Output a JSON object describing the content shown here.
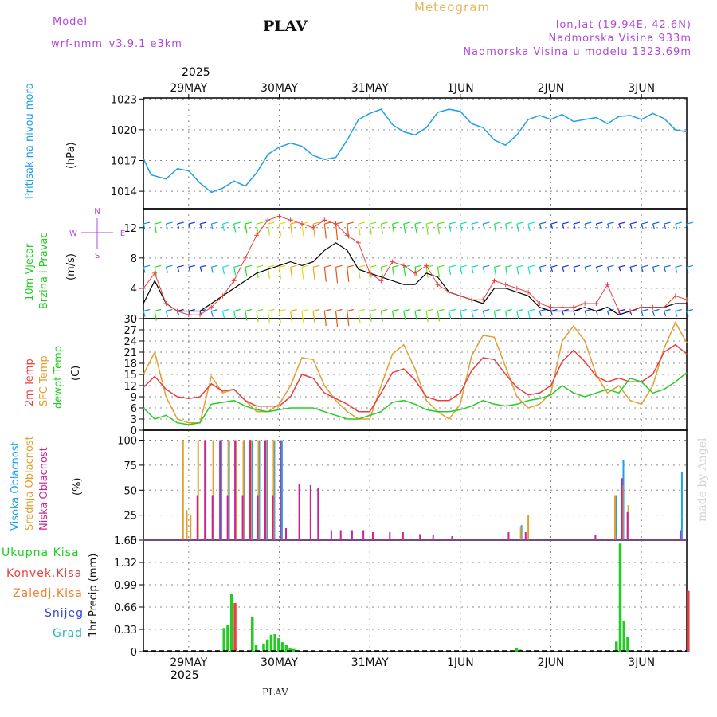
{
  "header": {
    "model_label": "Model",
    "model_name": "wrf-nmm_v3.9.1 e3km",
    "station": "PLAV",
    "title": "Meteogram",
    "coords": "lon,lat (19.94E, 42.6N)",
    "elevation": "Nadmorska Visina 933m",
    "model_elevation": "Nadmorska Visina u modelu 1323.69m"
  },
  "colors": {
    "pressure": "#1ea0e6",
    "temp2m": "#e84040",
    "tsfc": "#e0a030",
    "dewpt": "#22cc22",
    "purple": "#b04ad8",
    "gold": "#e8b860",
    "cloud_high": "#1ea0e6",
    "cloud_mid": "#e0a030",
    "cloud_low": "#cc2299",
    "total_precip": "#22cc22",
    "conv_precip": "#e84040",
    "frozen_precip": "#f08030",
    "snow": "#3344dd",
    "hail": "#22bbbb"
  },
  "chart_data": {
    "type": "line",
    "title": "Meteogram",
    "x_unit": "hours from 28 May 12:00 UTC",
    "x_range": [
      0,
      144
    ],
    "dates": [
      {
        "label": "29MAY",
        "year": "2025",
        "hour": 12
      },
      {
        "label": "30MAY",
        "hour": 36
      },
      {
        "label": "31MAY",
        "hour": 60
      },
      {
        "label": "1JUN",
        "hour": 84
      },
      {
        "label": "2JUN",
        "hour": 108
      },
      {
        "label": "3JUN",
        "hour": 132
      }
    ],
    "panels": {
      "pressure": {
        "ylabel_name": "Pritisak na nivou mora",
        "unit": "(hPa)",
        "ylim": [
          1012.3,
          1023.1
        ],
        "ticks": [
          "1014",
          "1017",
          "1020",
          "1023"
        ],
        "x": [
          0,
          2,
          6,
          9,
          12,
          15,
          18,
          21,
          24,
          27,
          30,
          33,
          36,
          39,
          42,
          45,
          48,
          51,
          54,
          57,
          60,
          63,
          66,
          69,
          72,
          75,
          78,
          81,
          84,
          87,
          90,
          93,
          96,
          99,
          102,
          105,
          108,
          111,
          114,
          117,
          120,
          123,
          126,
          129,
          132,
          135,
          138,
          141,
          144
        ],
        "values": [
          1017.2,
          1015.6,
          1015.2,
          1016.2,
          1016.0,
          1014.8,
          1013.9,
          1014.3,
          1015.0,
          1014.5,
          1015.8,
          1017.6,
          1018.3,
          1018.7,
          1018.4,
          1017.5,
          1017.1,
          1017.3,
          1019.0,
          1021.0,
          1021.6,
          1022.0,
          1020.5,
          1019.8,
          1019.5,
          1020.2,
          1021.7,
          1022.0,
          1021.8,
          1020.6,
          1020.2,
          1019.0,
          1018.5,
          1019.5,
          1021.0,
          1021.4,
          1021.0,
          1021.5,
          1020.8,
          1021.0,
          1021.2,
          1020.6,
          1021.3,
          1021.4,
          1021.0,
          1021.6,
          1021.1,
          1020.0,
          1019.8
        ]
      },
      "wind": {
        "ylabel_name": "10m Vjetar",
        "ylabel_name2": "Brzina i Pravac",
        "unit": "(m/s)",
        "compass": [
          "N",
          "W",
          "E",
          "S"
        ],
        "ylim": [
          0,
          14.5
        ],
        "ticks": [
          "0",
          "4",
          "8",
          "12"
        ],
        "x": [
          0,
          3,
          6,
          9,
          12,
          15,
          18,
          21,
          24,
          27,
          30,
          33,
          36,
          39,
          42,
          45,
          48,
          51,
          54,
          57,
          60,
          63,
          66,
          69,
          72,
          75,
          78,
          81,
          84,
          87,
          90,
          93,
          96,
          99,
          102,
          105,
          108,
          111,
          114,
          117,
          120,
          123,
          126,
          129,
          132,
          135,
          138,
          141,
          144
        ],
        "speed": [
          2,
          5,
          2,
          1,
          1,
          1,
          2,
          3,
          4,
          5,
          6,
          6.5,
          7,
          7.5,
          7,
          7.5,
          9,
          10,
          9,
          6.5,
          6,
          5.5,
          5,
          4.5,
          4.5,
          6,
          5.5,
          3.5,
          3,
          2.5,
          2,
          4,
          4,
          3.5,
          3,
          1.5,
          1,
          1,
          1,
          1.5,
          1,
          1.5,
          0.5,
          1,
          1.5,
          1.5,
          1.5,
          2,
          2
        ],
        "gust": [
          4,
          6,
          2,
          1,
          0.5,
          0.5,
          1.5,
          3,
          5,
          8,
          11,
          13,
          13.5,
          13,
          12.5,
          12,
          13,
          12.5,
          11,
          10,
          6,
          5,
          7.5,
          7,
          6,
          7,
          4.5,
          3.5,
          3,
          2.5,
          2.5,
          5,
          4.5,
          4,
          3.5,
          2,
          1.5,
          1.5,
          1.5,
          2,
          2,
          4.5,
          1,
          1,
          1.5,
          1.5,
          1.5,
          3,
          2.5
        ]
      },
      "temperature": {
        "ylabel_2m": "2m Temp",
        "ylabel_sfc": "SFC Temp",
        "ylabel_dew": "dewpt Temp",
        "unit": "(C)",
        "ylim": [
          0,
          30
        ],
        "ticks": [
          "0",
          "3",
          "6",
          "9",
          "12",
          "15",
          "18",
          "21",
          "24",
          "27",
          "30"
        ],
        "x": [
          0,
          3,
          6,
          9,
          12,
          15,
          18,
          21,
          24,
          27,
          30,
          33,
          36,
          39,
          42,
          45,
          48,
          51,
          54,
          57,
          60,
          63,
          66,
          69,
          72,
          75,
          78,
          81,
          84,
          87,
          90,
          93,
          96,
          99,
          102,
          105,
          108,
          111,
          114,
          117,
          120,
          123,
          126,
          129,
          132,
          135,
          138,
          141,
          144
        ],
        "t2m": [
          11.5,
          14.5,
          11,
          9,
          8.5,
          9,
          12.5,
          10.5,
          11,
          8,
          6.5,
          6.5,
          6.5,
          9,
          15,
          14,
          10,
          8.5,
          7,
          5,
          5,
          10,
          15.5,
          16.5,
          13.5,
          9,
          8,
          8,
          10,
          16,
          19.5,
          19,
          15,
          11.5,
          9.5,
          10,
          12,
          18.5,
          21.5,
          18.5,
          14.5,
          13,
          14,
          13,
          13,
          15,
          21,
          23,
          20.5
        ],
        "tsfc": [
          15,
          21,
          9,
          3,
          2,
          2,
          14.5,
          10,
          11,
          8,
          5,
          5,
          7,
          12,
          19.5,
          19,
          12,
          8,
          5,
          3,
          3,
          12,
          20.5,
          23,
          16.5,
          8,
          5,
          3,
          7,
          20,
          25.5,
          25,
          17,
          9,
          6,
          7,
          10,
          24,
          28,
          24,
          15,
          10,
          12,
          8,
          7,
          12,
          22,
          29,
          23.5
        ],
        "dewpt": [
          6,
          3,
          4,
          2,
          1.5,
          2,
          7,
          7.5,
          8,
          6.5,
          5.5,
          5,
          5.5,
          6,
          6,
          6,
          5,
          4,
          3,
          3,
          4,
          5,
          7.5,
          8,
          7,
          5.5,
          5,
          5,
          5.5,
          6.5,
          8,
          7,
          6.5,
          7,
          8,
          8.5,
          9.5,
          12,
          10,
          9,
          10,
          11,
          10,
          14,
          13,
          10,
          11,
          13,
          15.5
        ]
      },
      "clouds": {
        "ylabel_high": "Visoka Oblacnost",
        "ylabel_mid": "Srednja Oblacnost",
        "ylabel_low": "Niska Oblacnost",
        "unit": "(%)",
        "ylim": [
          0,
          110
        ],
        "ticks": [
          "0",
          "25",
          "50",
          "75",
          "100"
        ],
        "series": [
          {
            "name": "Visoka Oblacnost",
            "x": [
              20.5,
              22.5,
              24.5,
              26.5,
              28.5,
              30.5,
              32.5,
              34.5,
              36.5,
              100,
              125,
              127,
              142.5
            ],
            "values": [
              100,
              100,
              100,
              100,
              100,
              100,
              100,
              100,
              100,
              15,
              45,
              80,
              68
            ]
          },
          {
            "name": "Srednja Oblacnost",
            "x": [
              10,
              11,
              12,
              14,
              16,
              18,
              20,
              22,
              24,
              26,
              28,
              30,
              32,
              34,
              99.5,
              101.5,
              124.5,
              126.5,
              128
            ],
            "values": [
              100,
              30,
              25,
              100,
              100,
              100,
              100,
              100,
              100,
              100,
              100,
              100,
              100,
              100,
              13,
              25,
              45,
              55,
              35
            ]
          },
          {
            "name": "Niska Oblacnost",
            "x": [
              13.5,
              15.5,
              17.5,
              19.5,
              21.5,
              23.5,
              25.5,
              27.5,
              29.5,
              31.5,
              33.5,
              35.5,
              37,
              40.5,
              43.5,
              45.5,
              49,
              51.5,
              54.5,
              57.5,
              60,
              64.5,
              68,
              72.5,
              76,
              81,
              96,
              100.5,
              119,
              126,
              127.5,
              141.5
            ],
            "values": [
              45,
              100,
              45,
              100,
              45,
              100,
              45,
              100,
              45,
              100,
              45,
              100,
              12,
              56,
              55,
              52,
              10,
              10,
              10,
              10,
              8,
              8,
              8,
              6,
              5,
              4,
              8,
              8,
              5,
              62,
              28,
              10
            ]
          }
        ]
      },
      "precip": {
        "ylabel_total": "Ukupna Kisa",
        "ylabel_conv": "Konvek.Kisa",
        "ylabel_frozen": "Zaledj.Kisa",
        "ylabel_snow": "Snijeg",
        "ylabel_hail": "Grad",
        "unit": "1hr Precip (mm)",
        "ylim": [
          0,
          1.65
        ],
        "ticks": [
          "0",
          "0.33",
          "0.66",
          "0.99",
          "1.32",
          "1.65"
        ],
        "series": [
          {
            "name": "Ukupna Kisa",
            "x": [
              21,
              22,
              23,
              24,
              28.5,
              29.5,
              31.5,
              32.5,
              33.5,
              34.5,
              35.5,
              36.5,
              37.5,
              38.5,
              39.5,
              40.5,
              98.5,
              99.5,
              125,
              126,
              127,
              128
            ],
            "values": [
              0.35,
              0.4,
              0.85,
              0.05,
              0.52,
              0.1,
              0.12,
              0.18,
              0.25,
              0.26,
              0.2,
              0.14,
              0.1,
              0.06,
              0.04,
              0.02,
              0.06,
              0.03,
              0.15,
              1.6,
              0.45,
              0.22
            ]
          },
          {
            "name": "Konvek.Kisa",
            "x": [
              23.6,
              143.7
            ],
            "values": [
              0.72,
              0.9
            ]
          }
        ]
      }
    }
  },
  "footer": {
    "year": "2025",
    "station": "PLAV",
    "made_by": "made by Angel"
  }
}
